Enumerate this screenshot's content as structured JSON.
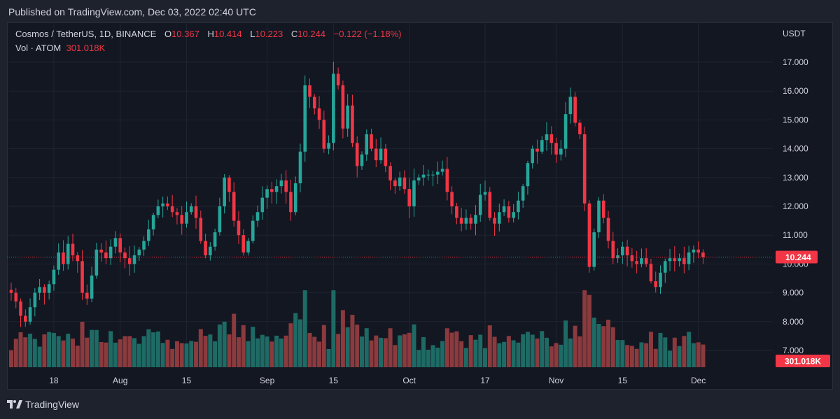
{
  "published": "Published on TradingView.com, Dec 03, 2022 02:40 UTC",
  "legend": {
    "symbol": "Cosmos / TetherUS, 1D, BINANCE",
    "o_label": "O",
    "o_value": "10.367",
    "h_label": "H",
    "h_value": "10.414",
    "l_label": "L",
    "l_value": "10.223",
    "c_label": "C",
    "c_value": "10.244",
    "change": "−0.122 (−1.18%)",
    "vol_label": "Vol · ATOM",
    "vol_value": "301.018K"
  },
  "axis_unit": "USDT",
  "price_tag": "10.244",
  "volume_tag": "301.018K",
  "footer": {
    "brand": "TradingView"
  },
  "colors": {
    "up": "#26a69a",
    "down": "#f23645",
    "up_volume": "#1e6a64",
    "down_volume": "#8b3a3e",
    "background": "#131722",
    "grid": "#1f2430"
  },
  "chart_data": {
    "type": "candlestick",
    "title": "Cosmos / TetherUS, 1D, BINANCE",
    "ylabel": "USDT",
    "ylim": [
      6.5,
      17.6
    ],
    "y_ticks": [
      "17.000",
      "16.000",
      "15.000",
      "14.000",
      "13.000",
      "12.000",
      "11.000",
      "10.000",
      "9.000",
      "8.000",
      "7.000"
    ],
    "x_ticks": [
      {
        "label": "18",
        "index": 9
      },
      {
        "label": "Aug",
        "index": 23
      },
      {
        "label": "15",
        "index": 37
      },
      {
        "label": "Sep",
        "index": 54
      },
      {
        "label": "15",
        "index": 68
      },
      {
        "label": "Oct",
        "index": 84
      },
      {
        "label": "17",
        "index": 100
      },
      {
        "label": "Nov",
        "index": 115
      },
      {
        "label": "15",
        "index": 129
      },
      {
        "label": "Dec",
        "index": 145
      }
    ],
    "closes": [
      9.0,
      8.7,
      8.2,
      8.0,
      8.5,
      9.0,
      9.2,
      9.0,
      9.3,
      9.8,
      10.4,
      10.0,
      10.7,
      10.3,
      10.1,
      9.0,
      8.8,
      9.6,
      10.5,
      10.4,
      10.2,
      10.6,
      10.9,
      10.4,
      10.2,
      10.0,
      10.3,
      10.5,
      10.8,
      11.2,
      11.7,
      12.0,
      12.1,
      12.0,
      11.8,
      11.7,
      11.4,
      11.8,
      12.0,
      11.6,
      10.8,
      10.3,
      10.6,
      11.1,
      12.0,
      13.0,
      12.5,
      11.5,
      11.0,
      10.4,
      10.8,
      11.5,
      11.8,
      12.3,
      12.6,
      12.5,
      12.7,
      12.9,
      12.5,
      11.8,
      12.8,
      13.9,
      16.2,
      15.8,
      15.4,
      15.0,
      14.0,
      14.2,
      16.6,
      16.2,
      14.7,
      15.5,
      14.2,
      13.4,
      13.8,
      14.5,
      14.0,
      13.6,
      14.0,
      13.4,
      12.9,
      12.7,
      13.0,
      12.6,
      12.0,
      12.9,
      13.0,
      13.1,
      13.1,
      13.1,
      13.2,
      13.3,
      12.5,
      12.0,
      11.6,
      11.4,
      11.6,
      11.4,
      11.7,
      12.4,
      12.5,
      11.6,
      11.4,
      11.8,
      12.0,
      11.6,
      11.8,
      12.2,
      12.7,
      13.5,
      14.0,
      13.9,
      14.3,
      14.5,
      14.2,
      13.8,
      14.0,
      15.2,
      15.8,
      14.9,
      14.5,
      12.1,
      9.9,
      11.1,
      12.2,
      11.6,
      10.8,
      10.2,
      10.3,
      10.6,
      10.3,
      10.1,
      10.0,
      10.2,
      10.0,
      9.4,
      9.2,
      9.7,
      10.1,
      10.2,
      10.1,
      10.2,
      10.0,
      10.4,
      10.5,
      10.4,
      10.24
    ],
    "volume_unit_ticks": [
      "301.018K"
    ]
  }
}
